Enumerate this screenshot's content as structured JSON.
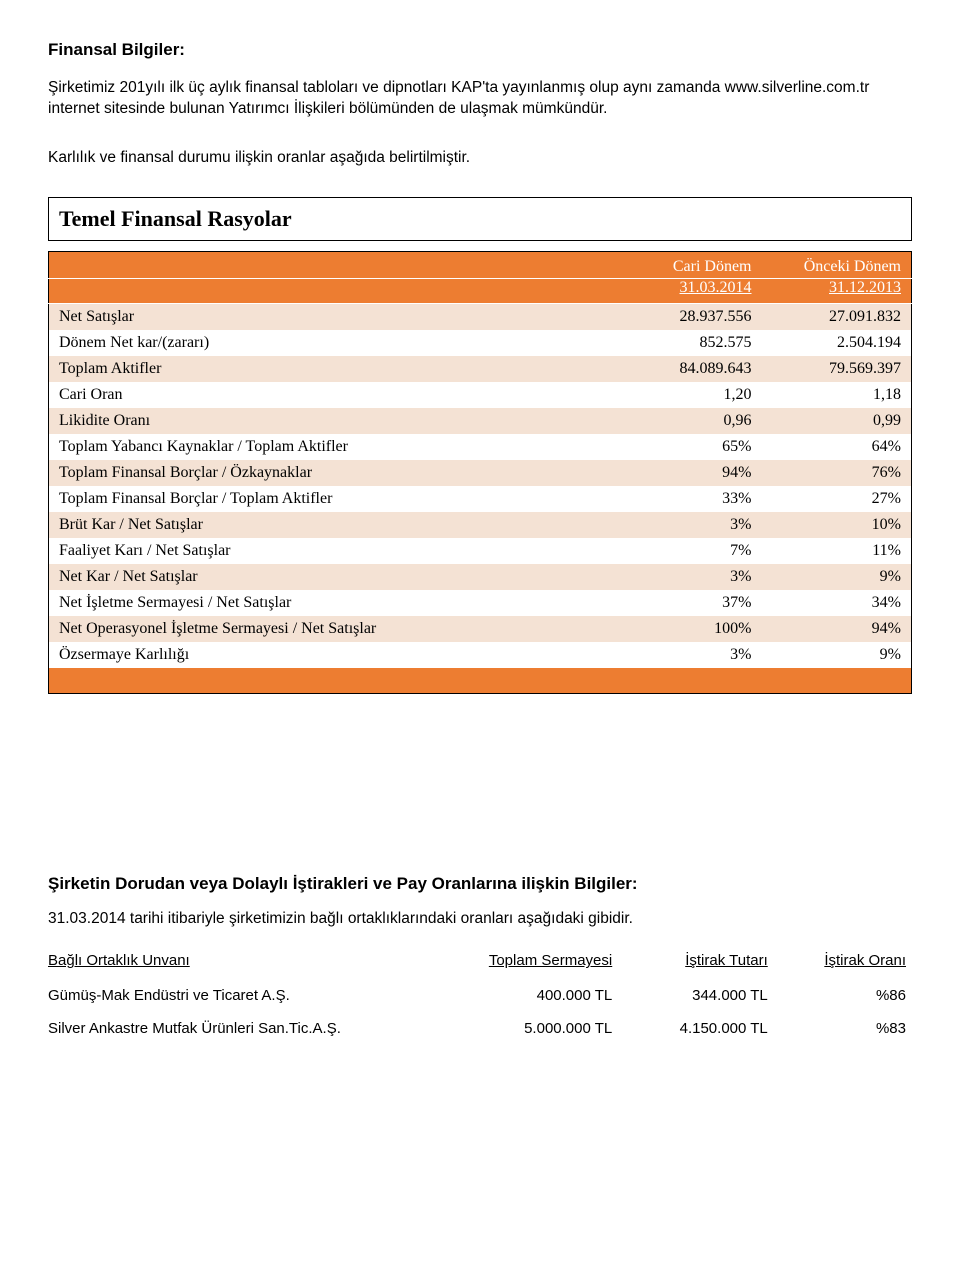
{
  "heading": "Finansal Bilgiler:",
  "intro": "Şirketimiz 201yılı ilk üç aylık finansal tabloları ve dipnotları KAP'ta yayınlanmış olup aynı zamanda www.silverline.com.tr internet sitesinde bulunan Yatırımcı İlişkileri bölümünden de ulaşmak mümkündür.",
  "intro2": "Karlılık ve finansal durumu ilişkin oranlar aşağıda belirtilmiştir.",
  "ratios": {
    "title": "Temel Finansal Rasyolar",
    "header_bg": "#ed7d31",
    "even_row_bg": "#f4e2d4",
    "odd_row_bg": "#ffffff",
    "col1_top": "Cari Dönem",
    "col2_top": "Önceki Dönem",
    "col1_bot": "31.03.2014",
    "col2_bot": "31.12.2013",
    "rows": [
      {
        "label": "Net Satışlar",
        "v1": "28.937.556",
        "v2": "27.091.832"
      },
      {
        "label": "Dönem Net kar/(zararı)",
        "v1": "852.575",
        "v2": "2.504.194"
      },
      {
        "label": "Toplam Aktifler",
        "v1": "84.089.643",
        "v2": "79.569.397"
      },
      {
        "label": "Cari Oran",
        "v1": "1,20",
        "v2": "1,18"
      },
      {
        "label": "Likidite Oranı",
        "v1": "0,96",
        "v2": "0,99"
      },
      {
        "label": "Toplam Yabancı Kaynaklar / Toplam Aktifler",
        "v1": "65%",
        "v2": "64%"
      },
      {
        "label": "Toplam Finansal Borçlar / Özkaynaklar",
        "v1": "94%",
        "v2": "76%"
      },
      {
        "label": "Toplam Finansal Borçlar / Toplam Aktifler",
        "v1": "33%",
        "v2": "27%"
      },
      {
        "label": "Brüt Kar / Net Satışlar",
        "v1": "3%",
        "v2": "10%"
      },
      {
        "label": "Faaliyet Karı / Net Satışlar",
        "v1": "7%",
        "v2": "11%"
      },
      {
        "label": "Net Kar / Net Satışlar",
        "v1": "3%",
        "v2": "9%"
      },
      {
        "label": "Net İşletme Sermayesi / Net Satışlar",
        "v1": "37%",
        "v2": "34%"
      },
      {
        "label": "Net Operasyonel İşletme Sermayesi / Net Satışlar",
        "v1": "100%",
        "v2": "94%"
      },
      {
        "label": "Özsermaye Karlılığı",
        "v1": "3%",
        "v2": "9%"
      }
    ]
  },
  "affiliates": {
    "heading": "Şirketin Dorudan veya Dolaylı İştirakleri ve Pay Oranlarına ilişkin Bilgiler:",
    "para": "31.03.2014 tarihi itibariyle şirketimizin bağlı ortaklıklarındaki  oranları aşağıdaki gibidir.",
    "columns": [
      "Bağlı Ortaklık Unvanı",
      "Toplam Sermayesi",
      "İştirak Tutarı",
      "İştirak Oranı"
    ],
    "rows": [
      {
        "name": "Gümüş-Mak Endüstri ve Ticaret A.Ş.",
        "total": "400.000 TL",
        "amount": "344.000 TL",
        "ratio": "%86"
      },
      {
        "name": "Silver Ankastre Mutfak Ürünleri San.Tic.A.Ş.",
        "total": "5.000.000 TL",
        "amount": "4.150.000 TL",
        "ratio": "%83"
      }
    ]
  }
}
